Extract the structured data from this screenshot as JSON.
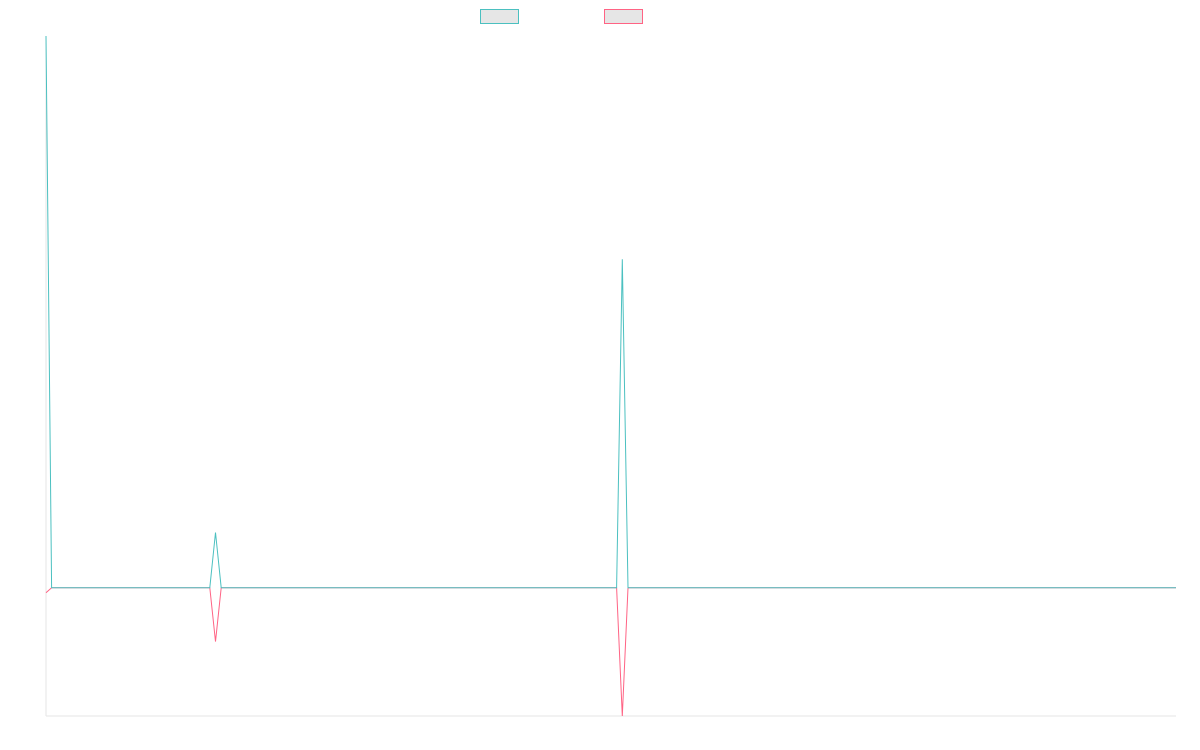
{
  "colors": {
    "series_1": "#4bc0c0",
    "series_2": "#ff6384",
    "legend_fill": "#e6e6e6",
    "axis": "#e5e5e5"
  },
  "legend": {
    "placement": "top-center",
    "items": [
      {
        "label": "",
        "color": "#4bc0c0"
      },
      {
        "label": "",
        "color": "#ff6384"
      }
    ]
  },
  "chart_data": {
    "type": "line",
    "title": "",
    "xlabel": "",
    "ylabel": "",
    "grid": false,
    "x_ticks_shown": false,
    "y_ticks_shown": false,
    "x": [
      0,
      0.5,
      14.5,
      15,
      15.5,
      50.5,
      51,
      51.5,
      100
    ],
    "xlim": [
      0,
      100
    ],
    "ylim": [
      -1,
      4.3
    ],
    "series": [
      {
        "color": "#4bc0c0",
        "values": [
          4.3,
          0,
          0,
          0.43,
          0,
          0,
          2.56,
          0,
          0
        ]
      },
      {
        "color": "#ff6384",
        "values": [
          -0.04,
          0,
          0,
          -0.42,
          0,
          0,
          -1,
          0,
          0
        ]
      }
    ]
  }
}
